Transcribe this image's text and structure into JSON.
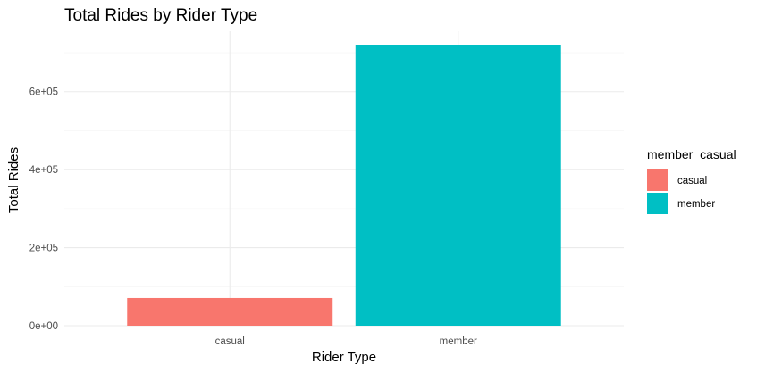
{
  "chart_data": {
    "type": "bar",
    "title": "Total Rides by Rider Type",
    "xlabel": "Rider Type",
    "ylabel": "Total Rides",
    "categories": [
      "casual",
      "member"
    ],
    "values": [
      71000,
      719000
    ],
    "colors": [
      "#F8766D",
      "#00BFC4"
    ],
    "ylim": [
      0,
      755000
    ],
    "yticks": [
      0,
      200000,
      400000,
      600000
    ],
    "ytick_labels": [
      "0e+00",
      "2e+05",
      "4e+05",
      "6e+05"
    ],
    "grid": true,
    "legend": {
      "title": "member_casual",
      "position": "right",
      "entries": [
        {
          "label": "casual",
          "color": "#F8766D"
        },
        {
          "label": "member",
          "color": "#00BFC4"
        }
      ]
    }
  }
}
